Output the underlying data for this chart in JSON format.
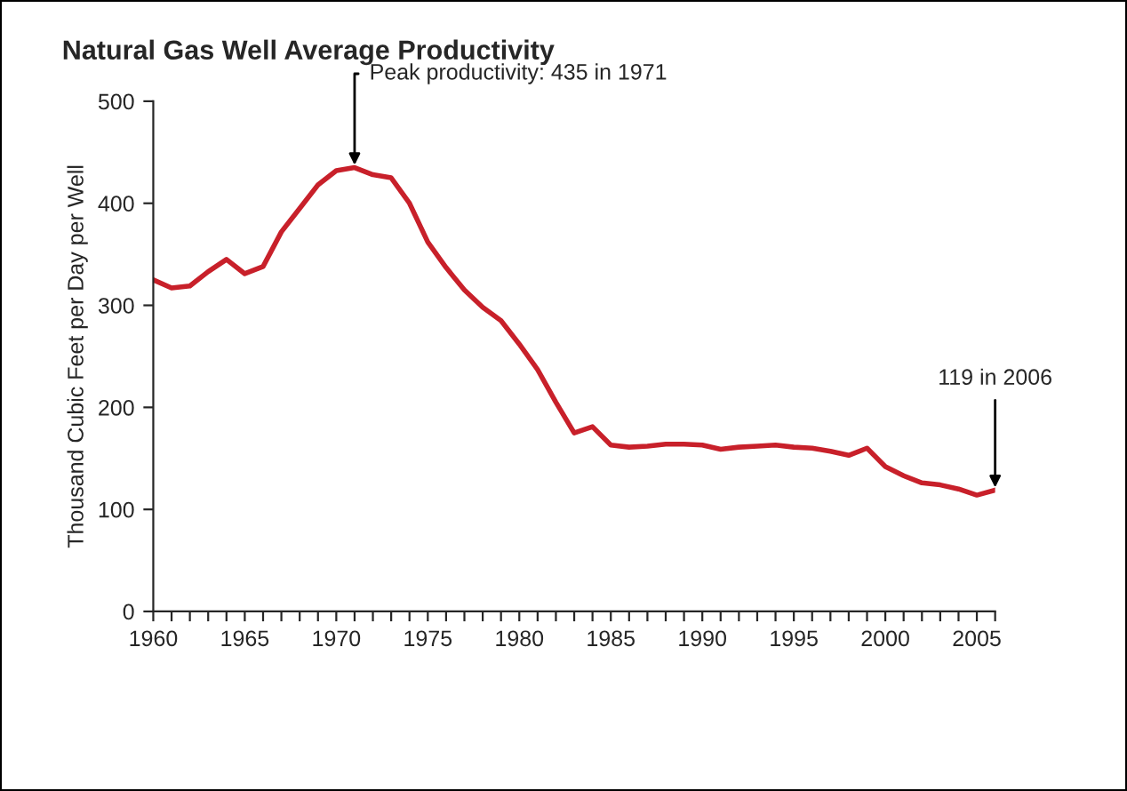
{
  "chart_data": {
    "type": "line",
    "title": "Natural Gas Well Average Productivity",
    "ylabel": "Thousand Cubic Feet per Day per Well",
    "x": [
      1960,
      1961,
      1962,
      1963,
      1964,
      1965,
      1966,
      1967,
      1968,
      1969,
      1970,
      1971,
      1972,
      1973,
      1974,
      1975,
      1976,
      1977,
      1978,
      1979,
      1980,
      1981,
      1982,
      1983,
      1984,
      1985,
      1986,
      1987,
      1988,
      1989,
      1990,
      1991,
      1992,
      1993,
      1994,
      1995,
      1996,
      1997,
      1998,
      1999,
      2000,
      2001,
      2002,
      2003,
      2004,
      2005,
      2006
    ],
    "series": [
      {
        "color": "#c8202a",
        "values": [
          325,
          317,
          319,
          333,
          345,
          331,
          338,
          372,
          395,
          418,
          432,
          435,
          428,
          425,
          400,
          362,
          337,
          315,
          298,
          285,
          262,
          237,
          205,
          175,
          181,
          163,
          161,
          162,
          164,
          164,
          163,
          159,
          161,
          162,
          163,
          161,
          160,
          157,
          153,
          160,
          142,
          133,
          126,
          124,
          120,
          114,
          119
        ]
      }
    ],
    "xlim": [
      1960,
      2006
    ],
    "ylim": [
      0,
      500
    ],
    "xticks": [
      1960,
      {
        "value": 1961,
        "label": null
      },
      {
        "value": 1962,
        "label": null
      },
      {
        "value": 1963,
        "label": null
      },
      {
        "value": 1964,
        "label": null
      },
      1965,
      {
        "value": 1966,
        "label": null
      },
      {
        "value": 1967,
        "label": null
      },
      {
        "value": 1968,
        "label": null
      },
      {
        "value": 1969,
        "label": null
      },
      1970,
      {
        "value": 1971,
        "label": null
      },
      {
        "value": 1972,
        "label": null
      },
      {
        "value": 1973,
        "label": null
      },
      {
        "value": 1974,
        "label": null
      },
      1975,
      {
        "value": 1976,
        "label": null
      },
      {
        "value": 1977,
        "label": null
      },
      {
        "value": 1978,
        "label": null
      },
      {
        "value": 1979,
        "label": null
      },
      1980,
      {
        "value": 1981,
        "label": null
      },
      {
        "value": 1982,
        "label": null
      },
      {
        "value": 1983,
        "label": null
      },
      {
        "value": 1984,
        "label": null
      },
      1985,
      {
        "value": 1986,
        "label": null
      },
      {
        "value": 1987,
        "label": null
      },
      {
        "value": 1988,
        "label": null
      },
      {
        "value": 1989,
        "label": null
      },
      1990,
      {
        "value": 1991,
        "label": null
      },
      {
        "value": 1992,
        "label": null
      },
      {
        "value": 1993,
        "label": null
      },
      {
        "value": 1994,
        "label": null
      },
      1995,
      {
        "value": 1996,
        "label": null
      },
      {
        "value": 1997,
        "label": null
      },
      {
        "value": 1998,
        "label": null
      },
      {
        "value": 1999,
        "label": null
      },
      2000,
      {
        "value": 2001,
        "label": null
      },
      {
        "value": 2002,
        "label": null
      },
      {
        "value": 2003,
        "label": null
      },
      {
        "value": 2004,
        "label": null
      },
      2005,
      {
        "value": 2006,
        "label": null
      }
    ],
    "yticks": [
      0,
      100,
      200,
      300,
      400,
      500
    ],
    "annotations": [
      {
        "text": "Peak productivity: 435 in 1971",
        "x": 1971,
        "y": 435
      },
      {
        "text": "119 in 2006",
        "x": 2006,
        "y": 119
      }
    ],
    "grid": false,
    "legend": false,
    "marker": "none",
    "line_style": "solid"
  }
}
